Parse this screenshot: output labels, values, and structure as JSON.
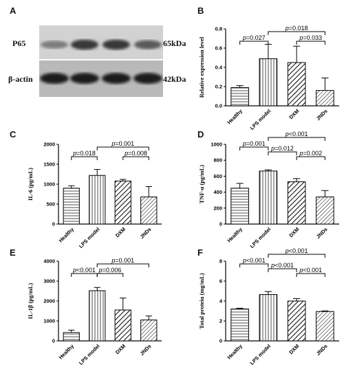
{
  "panels": {
    "A": "A",
    "B": "B",
    "C": "C",
    "D": "D",
    "E": "E",
    "F": "F"
  },
  "blot": {
    "row1_left": "P65",
    "row1_right": "65kDa",
    "row2_left": "β-actin",
    "row2_right": "42kDa",
    "p65_intensity": [
      0.45,
      0.85,
      0.85,
      0.65
    ],
    "actin_intensity": [
      0.95,
      0.95,
      0.95,
      0.95
    ]
  },
  "chart_data": [
    {
      "id": "B",
      "type": "bar",
      "categories": [
        "Healthy",
        "LPS model",
        "DXM",
        "JNDs"
      ],
      "values": [
        0.19,
        0.49,
        0.45,
        0.16
      ],
      "errors": [
        0.02,
        0.15,
        0.17,
        0.13
      ],
      "ylabel": "Relative expression level",
      "ylim": [
        0,
        0.8
      ],
      "yticks": [
        "0.0",
        "0.2",
        "0.4",
        "0.6",
        "0.8"
      ],
      "brackets": [
        {
          "from": 0,
          "to": 1,
          "label": "p=0.027",
          "level": 0
        },
        {
          "from": 1,
          "to": 3,
          "label": "p=0.018",
          "level": 1
        },
        {
          "from": 2,
          "to": 3,
          "label": "p=0.033",
          "level": 0
        }
      ]
    },
    {
      "id": "C",
      "type": "bar",
      "categories": [
        "Healthy",
        "LPS model",
        "DXM",
        "JNDs"
      ],
      "values": [
        900,
        1220,
        1080,
        680
      ],
      "errors": [
        60,
        150,
        40,
        260
      ],
      "ylabel": "IL-6 (pg/mL)",
      "ylim": [
        0,
        2000
      ],
      "yticks": [
        "0",
        "500",
        "1000",
        "1500",
        "2000"
      ],
      "brackets": [
        {
          "from": 0,
          "to": 1,
          "label": "p=0.018",
          "level": 0
        },
        {
          "from": 1,
          "to": 3,
          "label": "p=0.001",
          "level": 1
        },
        {
          "from": 2,
          "to": 3,
          "label": "p=0.008",
          "level": 0
        }
      ]
    },
    {
      "id": "D",
      "type": "bar",
      "categories": [
        "Healthy",
        "LPS model",
        "DXM",
        "JNDs"
      ],
      "values": [
        450,
        665,
        530,
        340
      ],
      "errors": [
        60,
        15,
        40,
        80
      ],
      "ylabel": "TNF-α (pg/mL)",
      "ylim": [
        0,
        1000
      ],
      "yticks": [
        "0",
        "200",
        "400",
        "600",
        "800",
        "1000"
      ],
      "brackets": [
        {
          "from": 0,
          "to": 1,
          "label": "p=0.001",
          "level": 1
        },
        {
          "from": 1,
          "to": 2,
          "label": "p=0.012",
          "level": 0.5
        },
        {
          "from": 1,
          "to": 3,
          "label": "p<0.001",
          "level": 2
        },
        {
          "from": 2,
          "to": 3,
          "label": "p=0.002",
          "level": 0
        }
      ]
    },
    {
      "id": "E",
      "type": "bar",
      "categories": [
        "Healthy",
        "LPS model",
        "DXM",
        "JNDs"
      ],
      "values": [
        420,
        2520,
        1550,
        1050
      ],
      "errors": [
        120,
        160,
        600,
        200
      ],
      "ylabel": "IL-1β (pg/mL)",
      "ylim": [
        0,
        4000
      ],
      "yticks": [
        "0",
        "1000",
        "2000",
        "3000",
        "4000"
      ],
      "brackets": [
        {
          "from": 1,
          "to": 2,
          "label": "p=0.006",
          "level": 0
        },
        {
          "from": 1,
          "to": 3,
          "label": "p=0.001",
          "level": 1
        }
      ],
      "extra_labels": [
        {
          "at": 0.5,
          "label": "p<0.001",
          "level": 0
        }
      ]
    },
    {
      "id": "F",
      "type": "bar",
      "categories": [
        "Healthy",
        "LPS model",
        "DXM",
        "JNDs"
      ],
      "values": [
        3.2,
        4.65,
        4.0,
        2.95
      ],
      "errors": [
        0.08,
        0.3,
        0.25,
        0.06
      ],
      "ylabel": "Total protein (mg/mL)",
      "ylim": [
        0,
        8
      ],
      "yticks": [
        "0",
        "2",
        "4",
        "6",
        "8"
      ],
      "brackets": [
        {
          "from": 0,
          "to": 1,
          "label": "p<0.001",
          "level": 1
        },
        {
          "from": 1,
          "to": 2,
          "label": "p<0.001",
          "level": 0.5
        },
        {
          "from": 1,
          "to": 3,
          "label": "p<0.001",
          "level": 2
        },
        {
          "from": 2,
          "to": 3,
          "label": "p<0.001",
          "level": 0
        }
      ]
    }
  ]
}
